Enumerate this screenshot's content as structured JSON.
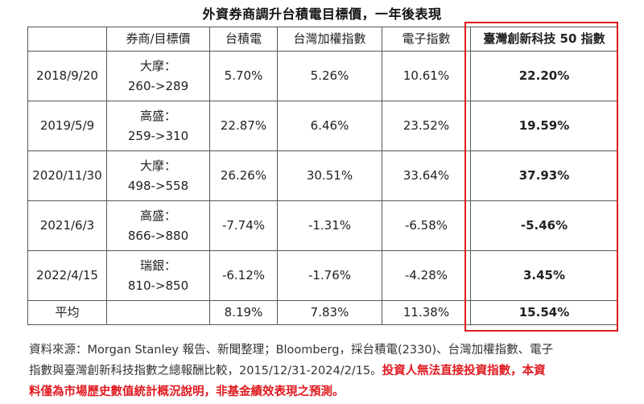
{
  "title": "外資券商調升台積電目標價，一年後表現",
  "columns": [
    "",
    "券商/目標價",
    "台積電",
    "台灣加權指數",
    "電子指數",
    "臺灣創新科技 50 指數"
  ],
  "rows": [
    {
      "date": "2018/9/20",
      "broker": "大摩：",
      "target": "260->289",
      "tsmc": "5.70%",
      "taiex": "5.26%",
      "elec": "10.61%",
      "innov50": "22.20%"
    },
    {
      "date": "2019/5/9",
      "broker": "高盛：",
      "target": "259->310",
      "tsmc": "22.87%",
      "taiex": "6.46%",
      "elec": "23.52%",
      "innov50": "19.59%"
    },
    {
      "date": "2020/11/30",
      "broker": "大摩：",
      "target": "498->558",
      "tsmc": "26.26%",
      "taiex": "30.51%",
      "elec": "33.64%",
      "innov50": "37.93%"
    },
    {
      "date": "2021/6/3",
      "broker": "高盛：",
      "target": "866->880",
      "tsmc": "-7.74%",
      "taiex": "-1.31%",
      "elec": "-6.58%",
      "innov50": "-5.46%"
    },
    {
      "date": "2022/4/15",
      "broker": "瑞銀：",
      "target": "810->850",
      "tsmc": "-6.12%",
      "taiex": "-1.76%",
      "elec": "-4.28%",
      "innov50": "3.45%"
    }
  ],
  "average": {
    "label": "平均",
    "broker": "",
    "tsmc": "8.19%",
    "taiex": "7.83%",
    "elec": "11.38%",
    "innov50": "15.54%"
  },
  "footnote": {
    "line1": "資料來源：Morgan Stanley 報告、新聞整理；Bloomberg，採台積電(2330)、台灣加權指數、電子",
    "line2_plain": "指數與臺灣創新科技指數之總報酬比較，2015/12/31-2024/2/15。",
    "line2_red": "投資人無法直接投資指數，本資",
    "line3_red": "料僅為市場歷史數值統計概況說明，非基金績效表現之預測。"
  },
  "colors": {
    "highlight_border": "#e0191f",
    "disclaimer_text": "#e0191f",
    "grid": "#555555"
  }
}
